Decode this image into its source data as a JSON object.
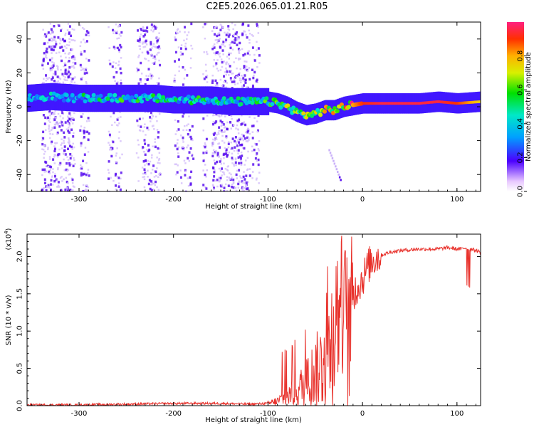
{
  "title": "C2E5.2026.065.01.21.R05",
  "chart_data": [
    {
      "type": "heatmap",
      "name": "spectrogram",
      "xlabel": "Height of straight line (km)",
      "ylabel": "Frequency (Hz)",
      "xlim": [
        -355,
        125
      ],
      "ylim": [
        -50,
        50
      ],
      "xticks": [
        -300,
        -200,
        -100,
        0,
        100
      ],
      "xtick_labels": [
        "-300",
        "-200",
        "-100",
        "0",
        "100"
      ],
      "yticks": [
        -40,
        -20,
        0,
        20,
        40
      ],
      "ytick_labels": [
        "-40",
        "-20",
        "0",
        "20",
        "40"
      ],
      "ridge": {
        "x": [
          -355,
          -330,
          -300,
          -280,
          -250,
          -220,
          -200,
          -180,
          -160,
          -140,
          -120,
          -100,
          -90,
          -80,
          -70,
          -60,
          -50,
          -40,
          -30,
          -20,
          -10,
          0,
          20,
          40,
          60,
          80,
          100,
          125
        ],
        "freq": [
          5,
          6,
          5,
          5,
          5,
          5,
          4,
          4,
          4,
          3,
          3,
          3,
          2,
          0,
          -3,
          -5,
          -4,
          -2,
          -2,
          0,
          1,
          2,
          2,
          2,
          2,
          3,
          2,
          3
        ],
        "amplitude": [
          0.3,
          0.35,
          0.4,
          0.45,
          0.45,
          0.45,
          0.4,
          0.45,
          0.45,
          0.4,
          0.4,
          0.5,
          0.5,
          0.55,
          0.55,
          0.55,
          0.55,
          0.6,
          0.65,
          0.75,
          0.8,
          0.9,
          0.95,
          0.95,
          0.95,
          0.95,
          0.9,
          0.75
        ]
      },
      "colorbar": {
        "label": "Normalized spectral amplitude",
        "range": [
          0,
          1
        ],
        "ticks": [
          0.0,
          0.2,
          0.4,
          0.6,
          0.8
        ],
        "tick_labels": [
          "0.0",
          "0.2",
          "0.4",
          "0.6",
          "0.8"
        ]
      }
    },
    {
      "type": "line",
      "name": "snr",
      "xlabel": "Height of straight line (km)",
      "ylabel": "SNR (10 * v/v)",
      "exponent_label": "(x10",
      "exponent_power": "4",
      "exponent_close": ")",
      "xlim": [
        -355,
        125
      ],
      "ylim": [
        0,
        2.3
      ],
      "xticks": [
        -300,
        -200,
        -100,
        0,
        100
      ],
      "xtick_labels": [
        "-300",
        "-200",
        "-100",
        "0",
        "100"
      ],
      "yticks": [
        0.0,
        0.5,
        1.0,
        1.5,
        2.0
      ],
      "ytick_labels": [
        "0.0",
        "0.5",
        "1.0",
        "1.5",
        "2.0"
      ],
      "color": "#e8302a",
      "series": [
        {
          "name": "SNR",
          "x": [
            -355,
            -300,
            -250,
            -200,
            -150,
            -120,
            -100,
            -90,
            -80,
            -70,
            -60,
            -50,
            -40,
            -35,
            -30,
            -25,
            -20,
            -15,
            -10,
            -5,
            0,
            5,
            10,
            20,
            30,
            40,
            60,
            80,
            90,
            100,
            105,
            110,
            112,
            115,
            125
          ],
          "y": [
            0.01,
            0.01,
            0.02,
            0.03,
            0.03,
            0.02,
            0.03,
            0.06,
            0.12,
            0.2,
            0.3,
            0.45,
            0.6,
            0.8,
            1.0,
            1.25,
            1.45,
            0.8,
            1.5,
            1.6,
            1.7,
            1.85,
            1.95,
            2.02,
            2.06,
            2.08,
            2.1,
            2.1,
            2.12,
            2.1,
            2.1,
            2.12,
            2.1,
            2.1,
            2.06
          ]
        }
      ]
    }
  ]
}
